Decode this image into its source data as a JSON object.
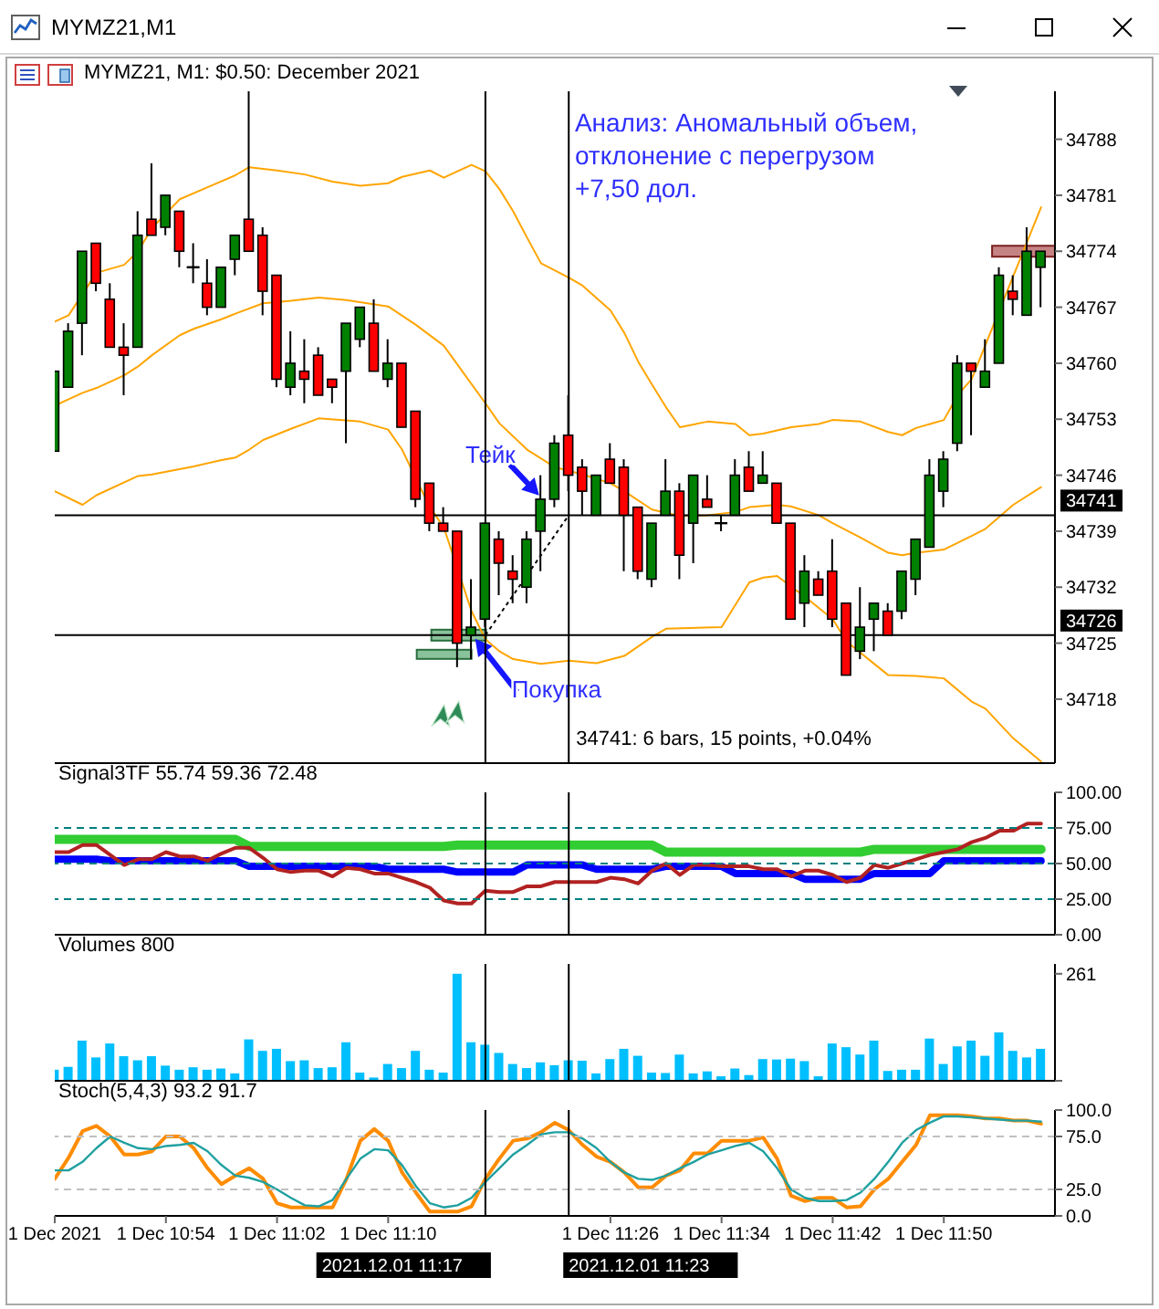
{
  "chart_data": [
    {
      "type": "candlestick",
      "title": "MYMZ21,M1",
      "subtitle": "MYMZ21, M1: $0.50: December 2021",
      "x": [
        "2021-12-01T10:46",
        "2021-12-01T10:47",
        "2021-12-01T10:48",
        "2021-12-01T10:49",
        "2021-12-01T10:50",
        "2021-12-01T10:51",
        "2021-12-01T10:52",
        "2021-12-01T10:53",
        "2021-12-01T10:54",
        "2021-12-01T10:55",
        "2021-12-01T10:56",
        "2021-12-01T10:57",
        "2021-12-01T10:58",
        "2021-12-01T10:59",
        "2021-12-01T11:00",
        "2021-12-01T11:01",
        "2021-12-01T11:02",
        "2021-12-01T11:03",
        "2021-12-01T11:04",
        "2021-12-01T11:05",
        "2021-12-01T11:06",
        "2021-12-01T11:07",
        "2021-12-01T11:08",
        "2021-12-01T11:09",
        "2021-12-01T11:10",
        "2021-12-01T11:11",
        "2021-12-01T11:12",
        "2021-12-01T11:13",
        "2021-12-01T11:14",
        "2021-12-01T11:15",
        "2021-12-01T11:16",
        "2021-12-01T11:17",
        "2021-12-01T11:18",
        "2021-12-01T11:19",
        "2021-12-01T11:20",
        "2021-12-01T11:21",
        "2021-12-01T11:22",
        "2021-12-01T11:23",
        "2021-12-01T11:24",
        "2021-12-01T11:25",
        "2021-12-01T11:26",
        "2021-12-01T11:27",
        "2021-12-01T11:28",
        "2021-12-01T11:29",
        "2021-12-01T11:30",
        "2021-12-01T11:31",
        "2021-12-01T11:32",
        "2021-12-01T11:33",
        "2021-12-01T11:34",
        "2021-12-01T11:35",
        "2021-12-01T11:36",
        "2021-12-01T11:37",
        "2021-12-01T11:38",
        "2021-12-01T11:39",
        "2021-12-01T11:40",
        "2021-12-01T11:41",
        "2021-12-01T11:42",
        "2021-12-01T11:43",
        "2021-12-01T11:44",
        "2021-12-01T11:45",
        "2021-12-01T11:46",
        "2021-12-01T11:47",
        "2021-12-01T11:48",
        "2021-12-01T11:49",
        "2021-12-01T11:50",
        "2021-12-01T11:51",
        "2021-12-01T11:52",
        "2021-12-01T11:53",
        "2021-12-01T11:54",
        "2021-12-01T11:55",
        "2021-12-01T11:56",
        "2021-12-01T11:57"
      ],
      "ohlc": [
        [
          34749,
          34759,
          34749,
          34759
        ],
        [
          34757,
          34765,
          34757,
          34764
        ],
        [
          34765,
          34774,
          34761,
          34774
        ],
        [
          34775,
          34775,
          34769,
          34770
        ],
        [
          34768,
          34770,
          34762,
          34762
        ],
        [
          34762,
          34765,
          34756,
          34761
        ],
        [
          34762,
          34779,
          34762,
          34776
        ],
        [
          34778,
          34785,
          34776,
          34776
        ],
        [
          34777,
          34781,
          34776,
          34781
        ],
        [
          34779,
          34779,
          34772,
          34774
        ],
        [
          34772,
          34775,
          34770,
          34772
        ],
        [
          34770,
          34773,
          34766,
          34767
        ],
        [
          34767,
          34772,
          34767,
          34772
        ],
        [
          34773,
          34776,
          34771,
          34776
        ],
        [
          34778,
          34794,
          34774,
          34774
        ],
        [
          34776,
          34777,
          34766,
          34769
        ],
        [
          34771,
          34771,
          34757,
          34758
        ],
        [
          34757,
          34764,
          34756,
          34760
        ],
        [
          34759,
          34763,
          34755,
          34758
        ],
        [
          34761,
          34762,
          34756,
          34756
        ],
        [
          34758,
          34758,
          34755,
          34757
        ],
        [
          34759,
          34765,
          34750,
          34765
        ],
        [
          34763,
          34767,
          34762,
          34767
        ],
        [
          34765,
          34768,
          34759,
          34759
        ],
        [
          34758,
          34763,
          34757,
          34760
        ],
        [
          34760,
          34760,
          34752,
          34752
        ],
        [
          34754,
          34754,
          34742,
          34743
        ],
        [
          34745,
          34745,
          34739,
          34740
        ],
        [
          34740,
          34742,
          34739,
          34739
        ],
        [
          34739,
          34739,
          34722,
          34725
        ],
        [
          34726,
          34733,
          34723,
          34727
        ],
        [
          34728,
          34740,
          34727,
          34740
        ],
        [
          34738,
          34739,
          34731,
          34735
        ],
        [
          34734,
          34736,
          34730,
          34733
        ],
        [
          34732,
          34739,
          34730,
          34738
        ],
        [
          34739,
          34746,
          34734,
          34743
        ],
        [
          34743,
          34751,
          34742,
          34750
        ],
        [
          34751,
          34756,
          34744,
          34746
        ],
        [
          34747,
          34748,
          34741,
          34744
        ],
        [
          34741,
          34746,
          34741,
          34746
        ],
        [
          34748,
          34750,
          34745,
          34745
        ],
        [
          34747,
          34748,
          34734,
          34741
        ],
        [
          34742,
          34742,
          34733,
          34734
        ],
        [
          34733,
          34740,
          34732,
          34740
        ],
        [
          34741,
          34748,
          34741,
          34744
        ],
        [
          34744,
          34745,
          34733,
          34736
        ],
        [
          34740,
          34746,
          34735,
          34746
        ],
        [
          34743,
          34746,
          34742,
          34742
        ],
        [
          34740,
          34741,
          34739,
          34740
        ],
        [
          34741,
          34748,
          34741,
          34746
        ],
        [
          34747,
          34749,
          34744,
          34744
        ],
        [
          34745,
          34749,
          34745,
          34746
        ],
        [
          34745,
          34745,
          34740,
          34740
        ],
        [
          34740,
          34740,
          34728,
          34728
        ],
        [
          34730,
          34736,
          34727,
          34734
        ],
        [
          34733,
          34734,
          34731,
          34731
        ],
        [
          34734,
          34738,
          34727,
          34728
        ],
        [
          34730,
          34730,
          34721,
          34721
        ],
        [
          34724,
          34732,
          34723,
          34727
        ],
        [
          34728,
          34730,
          34724,
          34730
        ],
        [
          34729,
          34730,
          34726,
          34726
        ],
        [
          34729,
          34734,
          34728,
          34734
        ],
        [
          34733,
          34738,
          34731,
          34738
        ],
        [
          34737,
          34748,
          34737,
          34746
        ],
        [
          34744,
          34749,
          34742,
          34748
        ],
        [
          34750,
          34761,
          34749,
          34760
        ],
        [
          34760,
          34760,
          34751,
          34759
        ],
        [
          34757,
          34763,
          34757,
          34759
        ],
        [
          34760,
          34772,
          34760,
          34771
        ],
        [
          34769,
          34771,
          34766,
          34768
        ],
        [
          34766,
          34777,
          34766,
          34774
        ],
        [
          34772,
          34774,
          34767,
          34774
        ]
      ],
      "colors": [
        "#008000",
        "#008000",
        "#008000",
        "#ff0000",
        "#ff0000",
        "#ff0000",
        "#008000",
        "#ff0000",
        "#008000",
        "#ff0000",
        "#000000",
        "#ff0000",
        "#008000",
        "#008000",
        "#ff0000",
        "#ff0000",
        "#ff0000",
        "#008000",
        "#ff0000",
        "#ff0000",
        "#ff0000",
        "#008000",
        "#008000",
        "#ff0000",
        "#008000",
        "#ff0000",
        "#ff0000",
        "#ff0000",
        "#ff0000",
        "#ff0000",
        "#008000",
        "#008000",
        "#ff0000",
        "#ff0000",
        "#008000",
        "#008000",
        "#008000",
        "#ff0000",
        "#ff0000",
        "#008000",
        "#ff0000",
        "#ff0000",
        "#ff0000",
        "#008000",
        "#008000",
        "#ff0000",
        "#008000",
        "#ff0000",
        "#000000",
        "#008000",
        "#ff0000",
        "#008000",
        "#ff0000",
        "#ff0000",
        "#008000",
        "#ff0000",
        "#ff0000",
        "#ff0000",
        "#008000",
        "#008000",
        "#ff0000",
        "#008000",
        "#008000",
        "#008000",
        "#008000",
        "#008000",
        "#ff0000",
        "#008000",
        "#008000",
        "#ff0000",
        "#008000",
        "#008000"
      ],
      "series": [
        {
          "type": "line",
          "color": "#ffa500",
          "x": [
            "2021-12-01T10:46",
            "2021-12-01T10:47",
            "2021-12-01T10:49",
            "2021-12-01T10:51",
            "2021-12-01T10:52",
            "2021-12-01T10:53",
            "2021-12-01T10:55",
            "2021-12-01T10:57",
            "2021-12-01T10:59",
            "2021-12-01T11:00",
            "2021-12-01T11:02",
            "2021-12-01T11:04",
            "2021-12-01T11:06",
            "2021-12-01T11:08",
            "2021-12-01T11:10",
            "2021-12-01T11:11",
            "2021-12-01T11:13",
            "2021-12-01T11:14",
            "2021-12-01T11:16",
            "2021-12-01T11:17",
            "2021-12-01T11:18",
            "2021-12-01T11:19",
            "2021-12-01T11:20",
            "2021-12-01T11:21",
            "2021-12-01T11:23",
            "2021-12-01T11:24",
            "2021-12-01T11:26",
            "2021-12-01T11:27",
            "2021-12-01T11:28",
            "2021-12-01T11:29",
            "2021-12-01T11:30",
            "2021-12-01T11:31",
            "2021-12-01T11:33",
            "2021-12-01T11:35",
            "2021-12-01T11:36",
            "2021-12-01T11:37",
            "2021-12-01T11:39",
            "2021-12-01T11:41",
            "2021-12-01T11:42",
            "2021-12-01T11:44",
            "2021-12-01T11:46",
            "2021-12-01T11:47",
            "2021-12-01T11:48",
            "2021-12-01T11:50",
            "2021-12-01T11:51",
            "2021-12-01T11:52",
            "2021-12-01T11:57"
          ],
          "values": [
            34765.2,
            34766,
            34771.3,
            34772.3,
            34774,
            34776.9,
            34780.5,
            34782,
            34783.5,
            34784.5,
            34784.1,
            34783.6,
            34782.7,
            34782.2,
            34782.5,
            34783.3,
            34784.1,
            34783.2,
            34784.8,
            34784,
            34781.8,
            34779,
            34775.7,
            34772.5,
            34770.7,
            34769.7,
            34766.6,
            34763.8,
            34760.2,
            34757.3,
            34754.5,
            34752,
            34752.7,
            34752.4,
            34751,
            34751.2,
            34752,
            34752.4,
            34752.9,
            34752.7,
            34751.4,
            34751,
            34751.9,
            34752.9,
            34756,
            34758,
            34779.5
          ]
        },
        {
          "type": "line",
          "color": "#ffa500",
          "x": [
            "2021-12-01T10:46",
            "2021-12-01T10:48",
            "2021-12-01T10:49",
            "2021-12-01T10:51",
            "2021-12-01T10:52",
            "2021-12-01T10:53",
            "2021-12-01T10:55",
            "2021-12-01T10:56",
            "2021-12-01T10:58",
            "2021-12-01T10:59",
            "2021-12-01T11:01",
            "2021-12-01T11:03",
            "2021-12-01T11:05",
            "2021-12-01T11:07",
            "2021-12-01T11:10",
            "2021-12-01T11:12",
            "2021-12-01T11:14",
            "2021-12-01T11:15",
            "2021-12-01T11:17",
            "2021-12-01T11:18",
            "2021-12-01T11:20",
            "2021-12-01T11:22",
            "2021-12-01T11:24",
            "2021-12-01T11:26",
            "2021-12-01T11:27",
            "2021-12-01T11:29",
            "2021-12-01T11:31",
            "2021-12-01T11:33",
            "2021-12-01T11:35",
            "2021-12-01T11:36",
            "2021-12-01T11:38",
            "2021-12-01T11:39",
            "2021-12-01T11:41",
            "2021-12-01T11:42",
            "2021-12-01T11:44",
            "2021-12-01T11:46",
            "2021-12-01T11:47",
            "2021-12-01T11:48",
            "2021-12-01T11:50",
            "2021-12-01T11:52",
            "2021-12-01T11:53",
            "2021-12-01T11:55",
            "2021-12-01T11:57"
          ],
          "values": [
            34754.7,
            34756.3,
            34756.9,
            34758.5,
            34759.6,
            34761,
            34763.5,
            34764.3,
            34765.5,
            34766.2,
            34767.5,
            34767.8,
            34768.2,
            34767.9,
            34767.1,
            34764.8,
            34762.2,
            34759.8,
            34755,
            34752.5,
            34749.2,
            34747,
            34746.1,
            34745,
            34744,
            34741.7,
            34740.9,
            34741,
            34741.4,
            34742,
            34742.3,
            34742.1,
            34741,
            34740,
            34738.2,
            34736.3,
            34736,
            34736.3,
            34736.7,
            34738.4,
            34739.3,
            34742.3,
            34744.5
          ]
        },
        {
          "type": "line",
          "color": "#ffa500",
          "x": [
            "2021-12-01T10:46",
            "2021-12-01T10:48",
            "2021-12-01T10:49",
            "2021-12-01T10:52",
            "2021-12-01T10:53",
            "2021-12-01T10:56",
            "2021-12-01T10:58",
            "2021-12-01T10:59",
            "2021-12-01T11:00",
            "2021-12-01T11:01",
            "2021-12-01T11:03",
            "2021-12-01T11:05",
            "2021-12-01T11:08",
            "2021-12-01T11:10",
            "2021-12-01T11:11",
            "2021-12-01T11:13",
            "2021-12-01T11:14",
            "2021-12-01T11:16",
            "2021-12-01T11:17",
            "2021-12-01T11:18",
            "2021-12-01T11:19",
            "2021-12-01T11:21",
            "2021-12-01T11:23",
            "2021-12-01T11:25",
            "2021-12-01T11:27",
            "2021-12-01T11:29",
            "2021-12-01T11:30",
            "2021-12-01T11:34",
            "2021-12-01T11:36",
            "2021-12-01T11:37",
            "2021-12-01T11:38",
            "2021-12-01T11:40",
            "2021-12-01T11:42",
            "2021-12-01T11:43",
            "2021-12-01T11:45",
            "2021-12-01T11:46",
            "2021-12-01T11:48",
            "2021-12-01T11:50",
            "2021-12-01T11:52",
            "2021-12-01T11:53",
            "2021-12-01T11:55",
            "2021-12-01T11:57"
          ],
          "values": [
            34744,
            34742.3,
            34743.5,
            34745.9,
            34746.1,
            34747.1,
            34747.9,
            34748.2,
            34749.2,
            34750.4,
            34751.8,
            34753.1,
            34752.7,
            34751.7,
            34749.2,
            34742,
            34739.5,
            34729,
            34725.5,
            34724,
            34723,
            34722.4,
            34722.8,
            34722.5,
            34723.4,
            34725.8,
            34726.8,
            34727,
            34732.6,
            34733.2,
            34733.4,
            34730.8,
            34728,
            34725.2,
            34722.4,
            34721,
            34720.9,
            34720.6,
            34717.7,
            34716.8,
            34713.1,
            34710.2
          ]
        }
      ],
      "xlim": [
        "2021-12-01T10:46",
        "2021-12-01T11:58"
      ],
      "ylim": [
        34710,
        34794
      ],
      "yticks": [
        34718,
        34725,
        34732,
        34739,
        34746,
        34753,
        34760,
        34767,
        34774,
        34781,
        34788
      ],
      "tick_labels": "y",
      "ref_lines": [
        {
          "axis": "y",
          "value": 34741,
          "label": "34741",
          "color": "#000000"
        },
        {
          "axis": "y",
          "value": 34726,
          "label": "34726",
          "color": "#000000"
        },
        {
          "axis": "x",
          "value": "2021-12-01T11:17",
          "color": "#000000"
        },
        {
          "axis": "x",
          "value": "2021-12-01T11:23",
          "color": "#000000"
        }
      ],
      "annotations": [
        "Анализ: Аномальный объем,\nотклонение с перегрузом\n+7,50 дол.",
        "34741: 6 bars, 15 points, +0.04%",
        {
          "text": "Тейк",
          "x": "2021-12-01T11:21",
          "y": 34743
        },
        {
          "text": "Покупка",
          "x": "2021-12-01T11:16",
          "y": 34726
        }
      ]
    },
    {
      "type": "line",
      "title": "Signal3TF 55.74 59.36 72.48",
      "x": [
        "2021-12-01T10:46",
        "2021-12-01T10:47",
        "2021-12-01T10:48",
        "2021-12-01T10:49",
        "2021-12-01T10:50",
        "2021-12-01T10:51",
        "2021-12-01T10:52",
        "2021-12-01T10:53",
        "2021-12-01T10:54",
        "2021-12-01T10:55",
        "2021-12-01T10:56",
        "2021-12-01T10:57",
        "2021-12-01T10:58",
        "2021-12-01T10:59",
        "2021-12-01T11:00",
        "2021-12-01T11:01",
        "2021-12-01T11:02",
        "2021-12-01T11:03",
        "2021-12-01T11:04",
        "2021-12-01T11:05",
        "2021-12-01T11:06",
        "2021-12-01T11:07",
        "2021-12-01T11:08",
        "2021-12-01T11:09",
        "2021-12-01T11:10",
        "2021-12-01T11:11",
        "2021-12-01T11:12",
        "2021-12-01T11:13",
        "2021-12-01T11:14",
        "2021-12-01T11:15",
        "2021-12-01T11:16",
        "2021-12-01T11:17",
        "2021-12-01T11:18",
        "2021-12-01T11:19",
        "2021-12-01T11:20",
        "2021-12-01T11:21",
        "2021-12-01T11:22",
        "2021-12-01T11:23",
        "2021-12-01T11:24",
        "2021-12-01T11:25",
        "2021-12-01T11:26",
        "2021-12-01T11:27",
        "2021-12-01T11:28",
        "2021-12-01T11:29",
        "2021-12-01T11:30",
        "2021-12-01T11:31",
        "2021-12-01T11:32",
        "2021-12-01T11:33",
        "2021-12-01T11:34",
        "2021-12-01T11:35",
        "2021-12-01T11:36",
        "2021-12-01T11:37",
        "2021-12-01T11:38",
        "2021-12-01T11:39",
        "2021-12-01T11:40",
        "2021-12-01T11:41",
        "2021-12-01T11:42",
        "2021-12-01T11:43",
        "2021-12-01T11:44",
        "2021-12-01T11:45",
        "2021-12-01T11:46",
        "2021-12-01T11:47",
        "2021-12-01T11:48",
        "2021-12-01T11:49",
        "2021-12-01T11:50",
        "2021-12-01T11:51",
        "2021-12-01T11:52",
        "2021-12-01T11:53",
        "2021-12-01T11:54",
        "2021-12-01T11:55",
        "2021-12-01T11:56",
        "2021-12-01T11:57"
      ],
      "series": [
        {
          "color": "#32cd32",
          "x": [
            "2021-12-01T10:46",
            "2021-12-01T10:59",
            "2021-12-01T11:00",
            "2021-12-01T11:14",
            "2021-12-01T11:15",
            "2021-12-01T11:29",
            "2021-12-01T11:30",
            "2021-12-01T11:44",
            "2021-12-01T11:45",
            "2021-12-01T11:57"
          ],
          "values": [
            67,
            67,
            62,
            62,
            63,
            63,
            58,
            58,
            60,
            60
          ]
        },
        {
          "color": "#0000ff",
          "x": [
            "2021-12-01T10:46",
            "2021-12-01T10:49",
            "2021-12-01T10:50",
            "2021-12-01T10:59",
            "2021-12-01T11:00",
            "2021-12-01T11:09",
            "2021-12-01T11:10",
            "2021-12-01T11:14",
            "2021-12-01T11:15",
            "2021-12-01T11:19",
            "2021-12-01T11:20",
            "2021-12-01T11:24",
            "2021-12-01T11:25",
            "2021-12-01T11:29",
            "2021-12-01T11:30",
            "2021-12-01T11:34",
            "2021-12-01T11:35",
            "2021-12-01T11:39",
            "2021-12-01T11:40",
            "2021-12-01T11:44",
            "2021-12-01T11:45",
            "2021-12-01T11:49",
            "2021-12-01T11:50",
            "2021-12-01T11:57"
          ],
          "values": [
            53,
            53,
            52,
            52,
            48,
            48,
            46,
            46,
            44,
            44,
            49,
            49,
            46,
            46,
            48,
            48,
            43,
            43,
            39,
            39,
            43,
            43,
            52,
            52
          ]
        },
        {
          "color": "#b22222",
          "values": [
            58,
            58,
            63,
            63,
            56,
            49,
            53,
            53,
            58,
            55,
            55,
            52,
            57,
            61,
            61,
            54,
            46,
            44,
            45,
            45,
            41,
            47,
            46,
            43,
            43,
            40,
            37,
            33,
            24,
            22,
            22,
            31,
            30,
            30,
            34,
            34,
            37,
            37,
            37,
            37,
            40,
            39,
            36,
            45,
            50,
            42,
            49,
            49,
            48,
            48,
            48,
            46,
            46,
            41,
            45,
            45,
            42,
            37,
            40,
            49,
            47,
            50,
            53,
            56,
            58,
            60,
            65,
            68,
            73,
            73,
            78,
            78
          ]
        }
      ],
      "xlim": [
        "2021-12-01T10:46",
        "2021-12-01T11:58"
      ],
      "ylim": [
        0,
        100
      ],
      "yticks": [
        {
          "value": 0,
          "label": "0.00"
        },
        {
          "value": 25,
          "label": "25.00"
        },
        {
          "value": 50,
          "label": "50.00"
        },
        {
          "value": 75,
          "label": "75.00"
        },
        {
          "value": 100,
          "label": "100.00"
        }
      ],
      "tick_labels": "y",
      "ref_lines": [
        {
          "axis": "y",
          "value": 75,
          "color": "#008080",
          "line_style": "dashed"
        },
        {
          "axis": "y",
          "value": 50,
          "color": "#008080",
          "line_style": "dashed"
        },
        {
          "axis": "y",
          "value": 25,
          "color": "#008080",
          "line_style": "dashed"
        },
        {
          "axis": "x",
          "value": "2021-12-01T11:17",
          "color": "#000000"
        },
        {
          "axis": "x",
          "value": "2021-12-01T11:23",
          "color": "#000000"
        }
      ]
    },
    {
      "type": "bar",
      "title": "Volumes 800",
      "x": [
        "2021-12-01T10:46",
        "2021-12-01T10:47",
        "2021-12-01T10:48",
        "2021-12-01T10:49",
        "2021-12-01T10:50",
        "2021-12-01T10:51",
        "2021-12-01T10:52",
        "2021-12-01T10:53",
        "2021-12-01T10:54",
        "2021-12-01T10:55",
        "2021-12-01T10:56",
        "2021-12-01T10:57",
        "2021-12-01T10:58",
        "2021-12-01T10:59",
        "2021-12-01T11:00",
        "2021-12-01T11:01",
        "2021-12-01T11:02",
        "2021-12-01T11:03",
        "2021-12-01T11:04",
        "2021-12-01T11:05",
        "2021-12-01T11:06",
        "2021-12-01T11:07",
        "2021-12-01T11:08",
        "2021-12-01T11:09",
        "2021-12-01T11:10",
        "2021-12-01T11:11",
        "2021-12-01T11:12",
        "2021-12-01T11:13",
        "2021-12-01T11:14",
        "2021-12-01T11:15",
        "2021-12-01T11:16",
        "2021-12-01T11:17",
        "2021-12-01T11:18",
        "2021-12-01T11:19",
        "2021-12-01T11:20",
        "2021-12-01T11:21",
        "2021-12-01T11:22",
        "2021-12-01T11:23",
        "2021-12-01T11:24",
        "2021-12-01T11:25",
        "2021-12-01T11:26",
        "2021-12-01T11:27",
        "2021-12-01T11:28",
        "2021-12-01T11:29",
        "2021-12-01T11:30",
        "2021-12-01T11:31",
        "2021-12-01T11:32",
        "2021-12-01T11:33",
        "2021-12-01T11:34",
        "2021-12-01T11:35",
        "2021-12-01T11:36",
        "2021-12-01T11:37",
        "2021-12-01T11:38",
        "2021-12-01T11:39",
        "2021-12-01T11:40",
        "2021-12-01T11:41",
        "2021-12-01T11:42",
        "2021-12-01T11:43",
        "2021-12-01T11:44",
        "2021-12-01T11:45",
        "2021-12-01T11:46",
        "2021-12-01T11:47",
        "2021-12-01T11:48",
        "2021-12-01T11:49",
        "2021-12-01T11:50",
        "2021-12-01T11:51",
        "2021-12-01T11:52",
        "2021-12-01T11:53",
        "2021-12-01T11:54",
        "2021-12-01T11:55",
        "2021-12-01T11:56",
        "2021-12-01T11:57"
      ],
      "values": [
        27,
        34,
        98,
        57,
        91,
        60,
        50,
        60,
        37,
        27,
        33,
        27,
        30,
        18,
        101,
        73,
        78,
        48,
        50,
        31,
        33,
        94,
        20,
        8,
        41,
        31,
        73,
        27,
        20,
        261,
        94,
        88,
        68,
        41,
        31,
        45,
        38,
        50,
        49,
        18,
        53,
        78,
        61,
        20,
        19,
        64,
        18,
        23,
        11,
        30,
        14,
        53,
        52,
        54,
        48,
        11,
        91,
        82,
        64,
        98,
        24,
        27,
        27,
        103,
        41,
        84,
        98,
        61,
        118,
        73,
        57,
        78
      ],
      "color": "#00bfff",
      "xlim": [
        "2021-12-01T10:46",
        "2021-12-01T11:58"
      ],
      "ylim": [
        0,
        285
      ],
      "yticks": [
        0,
        261
      ],
      "tick_labels": "y",
      "ref_lines": [
        {
          "axis": "x",
          "value": "2021-12-01T11:17",
          "color": "#000000"
        },
        {
          "axis": "x",
          "value": "2021-12-01T11:23",
          "color": "#000000"
        }
      ]
    },
    {
      "type": "line",
      "title": "Stoch(5,4,3) 93.2 91.7",
      "x": [
        "2021-12-01T10:46",
        "2021-12-01T10:47",
        "2021-12-01T10:48",
        "2021-12-01T10:49",
        "2021-12-01T10:50",
        "2021-12-01T10:51",
        "2021-12-01T10:52",
        "2021-12-01T10:53",
        "2021-12-01T10:54",
        "2021-12-01T10:55",
        "2021-12-01T10:56",
        "2021-12-01T10:57",
        "2021-12-01T10:58",
        "2021-12-01T10:59",
        "2021-12-01T11:00",
        "2021-12-01T11:01",
        "2021-12-01T11:02",
        "2021-12-01T11:03",
        "2021-12-01T11:04",
        "2021-12-01T11:05",
        "2021-12-01T11:06",
        "2021-12-01T11:07",
        "2021-12-01T11:08",
        "2021-12-01T11:09",
        "2021-12-01T11:10",
        "2021-12-01T11:11",
        "2021-12-01T11:12",
        "2021-12-01T11:13",
        "2021-12-01T11:14",
        "2021-12-01T11:15",
        "2021-12-01T11:16",
        "2021-12-01T11:17",
        "2021-12-01T11:18",
        "2021-12-01T11:19",
        "2021-12-01T11:20",
        "2021-12-01T11:21",
        "2021-12-01T11:22",
        "2021-12-01T11:23",
        "2021-12-01T11:24",
        "2021-12-01T11:25",
        "2021-12-01T11:26",
        "2021-12-01T11:27",
        "2021-12-01T11:28",
        "2021-12-01T11:29",
        "2021-12-01T11:30",
        "2021-12-01T11:31",
        "2021-12-01T11:32",
        "2021-12-01T11:33",
        "2021-12-01T11:34",
        "2021-12-01T11:35",
        "2021-12-01T11:36",
        "2021-12-01T11:37",
        "2021-12-01T11:38",
        "2021-12-01T11:39",
        "2021-12-01T11:40",
        "2021-12-01T11:41",
        "2021-12-01T11:42",
        "2021-12-01T11:43",
        "2021-12-01T11:44",
        "2021-12-01T11:45",
        "2021-12-01T11:46",
        "2021-12-01T11:47",
        "2021-12-01T11:48",
        "2021-12-01T11:49",
        "2021-12-01T11:50",
        "2021-12-01T11:51",
        "2021-12-01T11:52",
        "2021-12-01T11:53",
        "2021-12-01T11:54",
        "2021-12-01T11:55",
        "2021-12-01T11:56",
        "2021-12-01T11:57"
      ],
      "series": [
        {
          "color": "#ff8c00",
          "values": [
            35,
            55,
            80,
            85,
            75,
            58,
            58,
            61,
            75,
            75,
            64,
            45,
            30,
            38,
            45,
            35,
            12,
            8,
            8,
            8,
            8,
            35,
            71,
            82,
            71,
            41,
            22,
            4,
            4,
            4,
            9,
            35,
            54,
            71,
            73,
            79,
            88,
            81,
            67,
            56,
            51,
            41,
            27,
            27,
            38,
            43,
            59,
            59,
            71,
            71,
            71,
            74,
            54,
            19,
            14,
            17,
            17,
            8,
            9,
            25,
            35,
            51,
            67,
            95,
            95,
            95,
            94,
            92,
            92,
            90,
            90,
            87
          ]
        },
        {
          "color": "#20a0a0",
          "values": [
            43,
            43,
            51,
            64,
            75,
            69,
            64,
            63,
            66,
            67,
            69,
            61,
            48,
            38,
            36,
            32,
            25,
            17,
            10,
            9,
            15,
            35,
            54,
            63,
            62,
            48,
            28,
            12,
            8,
            10,
            17,
            32,
            45,
            58,
            67,
            77,
            79,
            79,
            73,
            64,
            51,
            41,
            35,
            34,
            38,
            45,
            51,
            58,
            62,
            66,
            69,
            61,
            45,
            25,
            17,
            14,
            14,
            15,
            22,
            35,
            51,
            69,
            81,
            88,
            94,
            94,
            93,
            92,
            91,
            90,
            90,
            89
          ]
        }
      ],
      "xlim": [
        "2021-12-01T10:46",
        "2021-12-01T11:58"
      ],
      "ylim": [
        0,
        100
      ],
      "xticks": [
        {
          "value": "2021-12-01T10:46",
          "label": "1 Dec 2021"
        },
        {
          "value": "2021-12-01T10:54",
          "label": "1 Dec 10:54"
        },
        {
          "value": "2021-12-01T11:02",
          "label": "1 Dec 11:02"
        },
        {
          "value": "2021-12-01T11:10",
          "label": "1 Dec 11:10"
        },
        {
          "value": "2021-12-01T11:26",
          "label": "1 Dec 11:26"
        },
        {
          "value": "2021-12-01T11:34",
          "label": "1 Dec 11:34"
        },
        {
          "value": "2021-12-01T11:42",
          "label": "1 Dec 11:42"
        },
        {
          "value": "2021-12-01T11:50",
          "label": "1 Dec 11:50"
        }
      ],
      "yticks": [
        {
          "value": 0,
          "label": "0.0"
        },
        {
          "value": 25,
          "label": "25.0"
        },
        {
          "value": 75,
          "label": "75.0"
        },
        {
          "value": 100,
          "label": "100.0"
        }
      ],
      "ref_lines": [
        {
          "axis": "y",
          "value": 75,
          "color": "#c0c0c0",
          "line_style": "dashed"
        },
        {
          "axis": "y",
          "value": 25,
          "color": "#c0c0c0",
          "line_style": "dashed"
        },
        {
          "axis": "x",
          "value": "2021-12-01T11:17",
          "label": "2021.12.01 11:17",
          "color": "#000000"
        },
        {
          "axis": "x",
          "value": "2021-12-01T11:23",
          "label": "2021.12.01 11:23",
          "color": "#000000"
        }
      ]
    }
  ]
}
